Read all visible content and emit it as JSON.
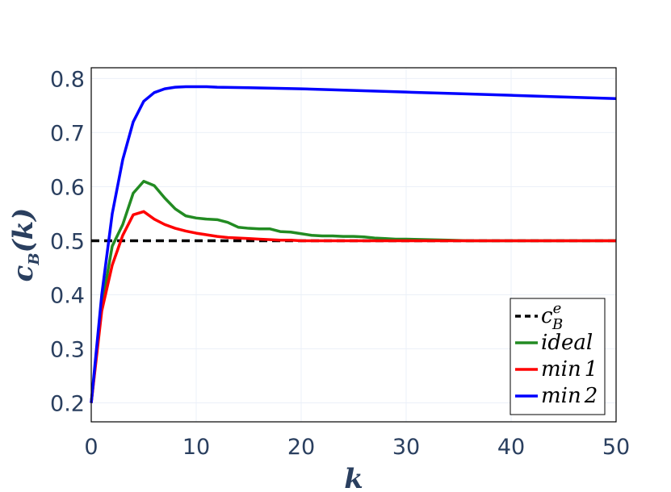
{
  "chart_data": {
    "type": "line",
    "title": "",
    "xlabel": "k",
    "ylabel": {
      "base": "c",
      "sub": "B",
      "arg": "(k)"
    },
    "xlim": [
      0,
      50
    ],
    "ylim": [
      0.165,
      0.82
    ],
    "xticks": [
      0,
      10,
      20,
      30,
      40,
      50
    ],
    "xtick_labels": [
      "0",
      "10",
      "20",
      "30",
      "40",
      "50"
    ],
    "yticks": [
      0.2,
      0.3,
      0.4,
      0.5,
      0.6,
      0.7,
      0.8
    ],
    "ytick_labels": [
      "0.2",
      "0.3",
      "0.4",
      "0.5",
      "0.6",
      "0.7",
      "0.8"
    ],
    "grid": true,
    "legend_position": "bottom-right",
    "series": [
      {
        "name": "c_B^e",
        "legend": {
          "base": "c",
          "sup": "e",
          "sub": "B"
        },
        "color": "#000000",
        "dash": "dashed",
        "x": [
          0,
          50
        ],
        "y": [
          0.5,
          0.5
        ]
      },
      {
        "name": "ideal",
        "legend": {
          "base": "ideal"
        },
        "color": "#228b22",
        "dash": "solid",
        "x": [
          0,
          1,
          2,
          3,
          4,
          5,
          6,
          7,
          8,
          9,
          10,
          11,
          12,
          13,
          14,
          15,
          16,
          17,
          18,
          19,
          20,
          21,
          22,
          23,
          24,
          25,
          26,
          27,
          28,
          29,
          30,
          32,
          34,
          36,
          38,
          40,
          45,
          50
        ],
        "y": [
          0.2,
          0.38,
          0.49,
          0.53,
          0.588,
          0.61,
          0.602,
          0.579,
          0.559,
          0.546,
          0.542,
          0.54,
          0.539,
          0.534,
          0.525,
          0.523,
          0.522,
          0.522,
          0.517,
          0.516,
          0.513,
          0.51,
          0.509,
          0.509,
          0.508,
          0.508,
          0.507,
          0.505,
          0.504,
          0.503,
          0.503,
          0.502,
          0.501,
          0.5,
          0.5,
          0.5,
          0.5,
          0.5
        ]
      },
      {
        "name": "min 1",
        "legend": {
          "base": "min",
          "num": "1"
        },
        "color": "#ff0000",
        "dash": "solid",
        "x": [
          0,
          1,
          2,
          3,
          4,
          5,
          6,
          7,
          8,
          9,
          10,
          11,
          12,
          13,
          14,
          15,
          16,
          17,
          18,
          19,
          20,
          22,
          25,
          30,
          35,
          40,
          45,
          50
        ],
        "y": [
          0.2,
          0.37,
          0.455,
          0.51,
          0.548,
          0.554,
          0.54,
          0.53,
          0.523,
          0.518,
          0.514,
          0.511,
          0.508,
          0.506,
          0.505,
          0.504,
          0.503,
          0.502,
          0.501,
          0.501,
          0.5,
          0.5,
          0.5,
          0.5,
          0.5,
          0.5,
          0.5,
          0.5
        ]
      },
      {
        "name": "min 2",
        "legend": {
          "base": "min",
          "num": "2"
        },
        "color": "#0000ff",
        "dash": "solid",
        "x": [
          0,
          1,
          2,
          3,
          4,
          5,
          6,
          7,
          8,
          9,
          10,
          11,
          12,
          15,
          20,
          25,
          30,
          35,
          40,
          45,
          50
        ],
        "y": [
          0.2,
          0.4,
          0.55,
          0.65,
          0.72,
          0.758,
          0.774,
          0.781,
          0.784,
          0.785,
          0.785,
          0.785,
          0.784,
          0.783,
          0.781,
          0.778,
          0.775,
          0.772,
          0.769,
          0.766,
          0.763
        ]
      }
    ]
  }
}
